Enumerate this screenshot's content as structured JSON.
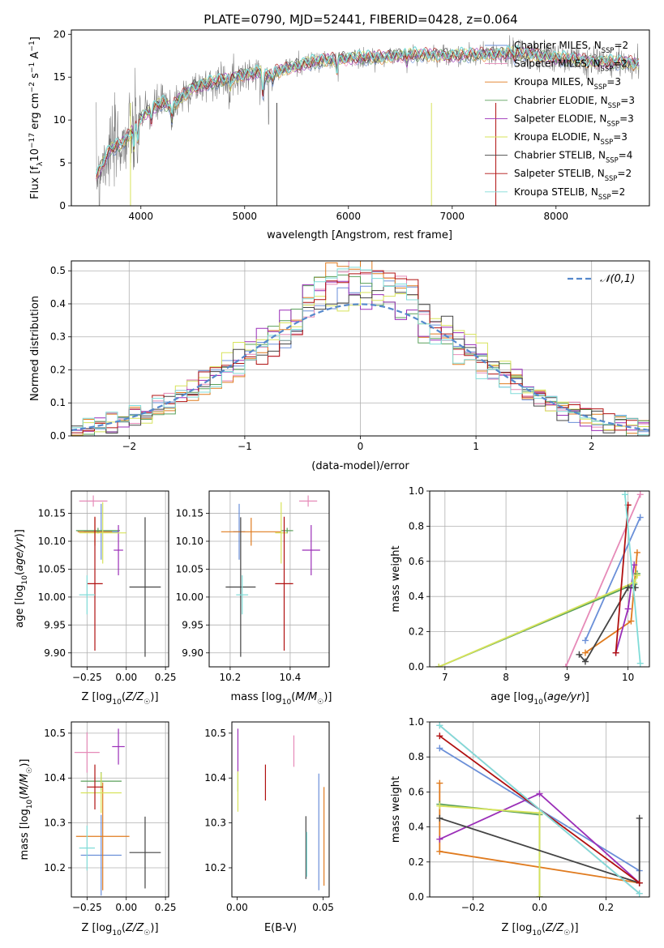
{
  "figure_title": "PLATE=0790, MJD=52441, FIBERID=0428, z=0.064",
  "colors": {
    "Chabrier MILES": "#6a8fd8",
    "Salpeter MILES": "#e68ab8",
    "Kroupa MILES": "#e07b1f",
    "Chabrier ELODIE": "#5aa05a",
    "Salpeter ELODIE": "#9b2fb8",
    "Kroupa ELODIE": "#d7e35a",
    "Chabrier STELIB": "#444444",
    "Salpeter STELIB": "#b01010",
    "Kroupa STELIB": "#80dcd8"
  },
  "chart_data": [
    {
      "id": "spectrum",
      "type": "line",
      "xlabel": "wavelength [Angstrom, rest frame]",
      "ylabel": "Flux [f_λ10^-17 erg cm^-2 s^-1 A^-1]",
      "xlim": [
        3330,
        8900
      ],
      "ylim": [
        0,
        20.5
      ],
      "xticks": [
        4000,
        5000,
        6000,
        7000,
        8000
      ],
      "yticks": [
        0,
        5,
        10,
        15,
        20
      ],
      "grid": false,
      "legend_position": "right",
      "legend": [
        {
          "name": "Chabrier MILES",
          "nssp": "2"
        },
        {
          "name": "Salpeter MILES",
          "nssp": "2"
        },
        {
          "name": "Kroupa MILES",
          "nssp": "3"
        },
        {
          "name": "Chabrier ELODIE",
          "nssp": "3"
        },
        {
          "name": "Salpeter ELODIE",
          "nssp": "3"
        },
        {
          "name": "Kroupa ELODIE",
          "nssp": "3"
        },
        {
          "name": "Chabrier STELIB",
          "nssp": "4"
        },
        {
          "name": "Salpeter STELIB",
          "nssp": "2"
        },
        {
          "name": "Kroupa STELIB",
          "nssp": "2"
        }
      ],
      "continuum": [
        [
          3570,
          3.5
        ],
        [
          3700,
          6.5
        ],
        [
          3850,
          7.5
        ],
        [
          3950,
          9.5
        ],
        [
          4000,
          10.3
        ],
        [
          4100,
          11.2
        ],
        [
          4200,
          12.0
        ],
        [
          4300,
          11.5
        ],
        [
          4400,
          12.8
        ],
        [
          4500,
          13.8
        ],
        [
          4700,
          14.4
        ],
        [
          4900,
          15.0
        ],
        [
          5000,
          15.3
        ],
        [
          5150,
          15.6
        ],
        [
          5180,
          14.8
        ],
        [
          5250,
          15.4
        ],
        [
          5400,
          16.0
        ],
        [
          5600,
          16.6
        ],
        [
          5800,
          17.0
        ],
        [
          6000,
          17.2
        ],
        [
          6300,
          17.3
        ],
        [
          6563,
          17.6
        ],
        [
          6800,
          17.6
        ],
        [
          7000,
          17.5
        ],
        [
          7200,
          17.6
        ],
        [
          7400,
          17.7
        ],
        [
          7600,
          17.8
        ],
        [
          7800,
          17.6
        ],
        [
          8000,
          17.2
        ],
        [
          8200,
          17.0
        ],
        [
          8400,
          16.8
        ],
        [
          8600,
          16.7
        ],
        [
          8800,
          16.6
        ]
      ]
    },
    {
      "id": "residuals",
      "type": "bar",
      "xlabel": "(data-model)/error",
      "ylabel": "Normed distribution",
      "xlim": [
        -2.5,
        2.5
      ],
      "ylim": [
        0,
        0.53
      ],
      "xticks": [
        -2,
        -1,
        0,
        1,
        2
      ],
      "yticks": [
        0.0,
        0.1,
        0.2,
        0.3,
        0.4,
        0.5
      ],
      "grid": true,
      "legend_position": "top-right",
      "legend": "𝒩(0,1)",
      "bin_width": 0.1
    },
    {
      "id": "age_vs_Z",
      "type": "scatter",
      "xlabel": "Z [log10(Z/Z☉)]",
      "ylabel": "age  [log10(age/yr)]",
      "xlim": [
        -0.35,
        0.27
      ],
      "ylim": [
        9.875,
        10.19
      ],
      "xticks": [
        -0.25,
        0.0,
        0.25
      ],
      "yticks": [
        9.9,
        9.95,
        10.0,
        10.05,
        10.1,
        10.15
      ],
      "grid": true,
      "points": [
        {
          "s": "Chabrier MILES",
          "x": -0.16,
          "y": 10.117,
          "xe": 0.11,
          "ye": 0.05
        },
        {
          "s": "Salpeter MILES",
          "x": -0.21,
          "y": 10.172,
          "xe": 0.09,
          "ye": 0.01
        },
        {
          "s": "Kroupa MILES",
          "x": -0.2,
          "y": 10.117,
          "xe": 0.11,
          "ye": 0.025
        },
        {
          "s": "Chabrier ELODIE",
          "x": -0.18,
          "y": 10.119,
          "xe": 0.14,
          "ye": 0.005
        },
        {
          "s": "Salpeter ELODIE",
          "x": -0.05,
          "y": 10.084,
          "xe": 0.03,
          "ye": 0.045
        },
        {
          "s": "Kroupa ELODIE",
          "x": -0.15,
          "y": 10.115,
          "xe": 0.15,
          "ye": 0.055
        },
        {
          "s": "Chabrier STELIB",
          "x": 0.12,
          "y": 10.018,
          "xe": 0.1,
          "ye": 0.125
        },
        {
          "s": "Salpeter STELIB",
          "x": -0.2,
          "y": 10.024,
          "xe": 0.05,
          "ye": 0.12
        },
        {
          "s": "Kroupa STELIB",
          "x": -0.25,
          "y": 10.004,
          "xe": 0.05,
          "ye": 0.035
        }
      ]
    },
    {
      "id": "age_vs_mass",
      "type": "scatter",
      "xlabel": "mass [log10(M/M☉)]",
      "ylabel": "",
      "xlim": [
        10.13,
        10.53
      ],
      "ylim": [
        9.875,
        10.19
      ],
      "xticks": [
        10.2,
        10.4
      ],
      "yticks": [
        9.9,
        9.95,
        10.0,
        10.05,
        10.1,
        10.15
      ],
      "grid": true,
      "points": [
        {
          "s": "Chabrier MILES",
          "x": 10.23,
          "y": 10.117,
          "xe": 0.02,
          "ye": 0.05
        },
        {
          "s": "Salpeter MILES",
          "x": 10.46,
          "y": 10.172,
          "xe": 0.03,
          "ye": 0.01
        },
        {
          "s": "Kroupa MILES",
          "x": 10.27,
          "y": 10.117,
          "xe": 0.1,
          "ye": 0.025
        },
        {
          "s": "Chabrier ELODIE",
          "x": 10.39,
          "y": 10.119,
          "xe": 0.02,
          "ye": 0.005
        },
        {
          "s": "Salpeter ELODIE",
          "x": 10.47,
          "y": 10.084,
          "xe": 0.03,
          "ye": 0.045
        },
        {
          "s": "Kroupa ELODIE",
          "x": 10.37,
          "y": 10.115,
          "xe": 0.02,
          "ye": 0.055
        },
        {
          "s": "Chabrier STELIB",
          "x": 10.235,
          "y": 10.018,
          "xe": 0.05,
          "ye": 0.125
        },
        {
          "s": "Salpeter STELIB",
          "x": 10.38,
          "y": 10.024,
          "xe": 0.03,
          "ye": 0.12
        },
        {
          "s": "Kroupa STELIB",
          "x": 10.24,
          "y": 10.004,
          "xe": 0.02,
          "ye": 0.035
        }
      ]
    },
    {
      "id": "weight_vs_age",
      "type": "line",
      "xlabel": "age  [log10(age/yr)]",
      "ylabel": "mass weight",
      "xlim": [
        6.75,
        10.35
      ],
      "ylim": [
        0,
        1
      ],
      "xticks": [
        7,
        8,
        9,
        10
      ],
      "yticks": [
        0.0,
        0.2,
        0.4,
        0.6,
        0.8,
        1.0
      ],
      "grid": true,
      "series": [
        {
          "s": "Chabrier MILES",
          "pts": [
            [
              9.3,
              0.15
            ],
            [
              10.2,
              0.85
            ]
          ]
        },
        {
          "s": "Salpeter MILES",
          "pts": [
            [
              8.98,
              0.0
            ],
            [
              10.2,
              0.98
            ]
          ]
        },
        {
          "s": "Kroupa MILES",
          "pts": [
            [
              9.3,
              0.08
            ],
            [
              10.05,
              0.26
            ],
            [
              10.15,
              0.65
            ]
          ]
        },
        {
          "s": "Chabrier ELODIE",
          "pts": [
            [
              6.9,
              0.0
            ],
            [
              10.1,
              0.47
            ],
            [
              10.15,
              0.53
            ]
          ]
        },
        {
          "s": "Salpeter ELODIE",
          "pts": [
            [
              9.8,
              0.08
            ],
            [
              10.0,
              0.33
            ],
            [
              10.1,
              0.58
            ]
          ]
        },
        {
          "s": "Kroupa ELODIE",
          "pts": [
            [
              6.9,
              0.0
            ],
            [
              10.1,
              0.48
            ],
            [
              10.15,
              0.52
            ]
          ]
        },
        {
          "s": "Chabrier STELIB",
          "pts": [
            [
              9.2,
              0.07
            ],
            [
              9.3,
              0.03
            ],
            [
              10.0,
              0.45
            ],
            [
              10.12,
              0.45
            ]
          ]
        },
        {
          "s": "Salpeter STELIB",
          "pts": [
            [
              9.8,
              0.08
            ],
            [
              10.0,
              0.92
            ]
          ]
        },
        {
          "s": "Kroupa STELIB",
          "pts": [
            [
              9.95,
              0.98
            ],
            [
              10.2,
              0.02
            ]
          ]
        }
      ]
    },
    {
      "id": "mass_vs_Z",
      "type": "scatter",
      "xlabel": "Z [log10(Z/Z☉)]",
      "ylabel": "mass [log10(M/M☉)]",
      "xlim": [
        -0.35,
        0.27
      ],
      "ylim": [
        10.135,
        10.525
      ],
      "xticks": [
        -0.25,
        0.0,
        0.25
      ],
      "yticks": [
        10.2,
        10.3,
        10.4,
        10.5
      ],
      "grid": true,
      "points": [
        {
          "s": "Chabrier MILES",
          "x": -0.16,
          "y": 10.228,
          "xe": 0.13,
          "ye": 0.09
        },
        {
          "s": "Salpeter MILES",
          "x": -0.25,
          "y": 10.457,
          "xe": 0.08,
          "ye": 0.045
        },
        {
          "s": "Kroupa MILES",
          "x": -0.15,
          "y": 10.27,
          "xe": 0.17,
          "ye": 0.12
        },
        {
          "s": "Chabrier ELODIE",
          "x": -0.16,
          "y": 10.393,
          "xe": 0.13,
          "ye": 0.02
        },
        {
          "s": "Salpeter ELODIE",
          "x": -0.05,
          "y": 10.47,
          "xe": 0.04,
          "ye": 0.04
        },
        {
          "s": "Kroupa ELODIE",
          "x": -0.16,
          "y": 10.367,
          "xe": 0.13,
          "ye": 0.045
        },
        {
          "s": "Chabrier STELIB",
          "x": 0.12,
          "y": 10.234,
          "xe": 0.1,
          "ye": 0.08
        },
        {
          "s": "Salpeter STELIB",
          "x": -0.2,
          "y": 10.38,
          "xe": 0.05,
          "ye": 0.05
        },
        {
          "s": "Kroupa STELIB",
          "x": -0.25,
          "y": 10.244,
          "xe": 0.05,
          "ye": 0.05
        }
      ]
    },
    {
      "id": "mass_vs_EBV",
      "type": "scatter",
      "xlabel": "E(B-V)",
      "ylabel": "",
      "xlim": [
        -0.003,
        0.0535
      ],
      "ylim": [
        10.135,
        10.525
      ],
      "xticks": [
        0.0,
        0.05
      ],
      "yticks": [
        10.2,
        10.3,
        10.4,
        10.5
      ],
      "grid": false,
      "points": [
        {
          "s": "Chabrier MILES",
          "x": 0.0475,
          "y": 10.28,
          "xe": 0.0,
          "ye": 0.13
        },
        {
          "s": "Salpeter MILES",
          "x": 0.033,
          "y": 10.46,
          "xe": 0.0,
          "ye": 0.035
        },
        {
          "s": "Kroupa MILES",
          "x": 0.0505,
          "y": 10.27,
          "xe": 0.0,
          "ye": 0.11
        },
        {
          "s": "Chabrier ELODIE",
          "x": 0.0005,
          "y": 10.39,
          "xe": 0.0,
          "ye": 0.02
        },
        {
          "s": "Salpeter ELODIE",
          "x": 0.0005,
          "y": 10.46,
          "xe": 0.0,
          "ye": 0.05
        },
        {
          "s": "Kroupa ELODIE",
          "x": 0.0005,
          "y": 10.37,
          "xe": 0.0,
          "ye": 0.045
        },
        {
          "s": "Chabrier STELIB",
          "x": 0.04,
          "y": 10.245,
          "xe": 0.0,
          "ye": 0.07
        },
        {
          "s": "Salpeter STELIB",
          "x": 0.0165,
          "y": 10.39,
          "xe": 0.0,
          "ye": 0.04
        },
        {
          "s": "Kroupa STELIB",
          "x": 0.0405,
          "y": 10.23,
          "xe": 0.0,
          "ye": 0.05
        }
      ]
    },
    {
      "id": "weight_vs_Z",
      "type": "line",
      "xlabel": "Z [log10(Z/Z☉)]",
      "ylabel": "mass weight",
      "xlim": [
        -0.33,
        0.33
      ],
      "ylim": [
        0,
        1
      ],
      "xticks": [
        -0.2,
        0.0,
        0.2
      ],
      "yticks": [
        0.0,
        0.2,
        0.4,
        0.6,
        0.8,
        1.0
      ],
      "grid": true,
      "series": [
        {
          "s": "Chabrier MILES",
          "pts": [
            [
              -0.3,
              0.85
            ],
            [
              0.3,
              0.15
            ]
          ]
        },
        {
          "s": "Salpeter MILES",
          "pts": [
            [
              -0.3,
              0.98
            ],
            [
              0.3,
              0.02
            ]
          ]
        },
        {
          "s": "Kroupa MILES",
          "pts": [
            [
              -0.3,
              0.65
            ],
            [
              -0.3,
              0.26
            ],
            [
              0.3,
              0.08
            ]
          ]
        },
        {
          "s": "Chabrier ELODIE",
          "pts": [
            [
              -0.3,
              0.53
            ],
            [
              0.0,
              0.47
            ],
            [
              0.0,
              0.0
            ]
          ]
        },
        {
          "s": "Salpeter ELODIE",
          "pts": [
            [
              -0.3,
              0.33
            ],
            [
              0.0,
              0.59
            ],
            [
              0.3,
              0.08
            ]
          ]
        },
        {
          "s": "Kroupa ELODIE",
          "pts": [
            [
              -0.3,
              0.52
            ],
            [
              0.0,
              0.48
            ],
            [
              0.0,
              0.0
            ]
          ]
        },
        {
          "s": "Chabrier STELIB",
          "pts": [
            [
              -0.3,
              0.45
            ],
            [
              0.3,
              0.08
            ],
            [
              0.3,
              0.45
            ]
          ]
        },
        {
          "s": "Salpeter STELIB",
          "pts": [
            [
              -0.3,
              0.92
            ],
            [
              0.3,
              0.08
            ]
          ]
        },
        {
          "s": "Kroupa STELIB",
          "pts": [
            [
              -0.3,
              0.98
            ],
            [
              0.3,
              0.02
            ]
          ]
        }
      ]
    }
  ]
}
